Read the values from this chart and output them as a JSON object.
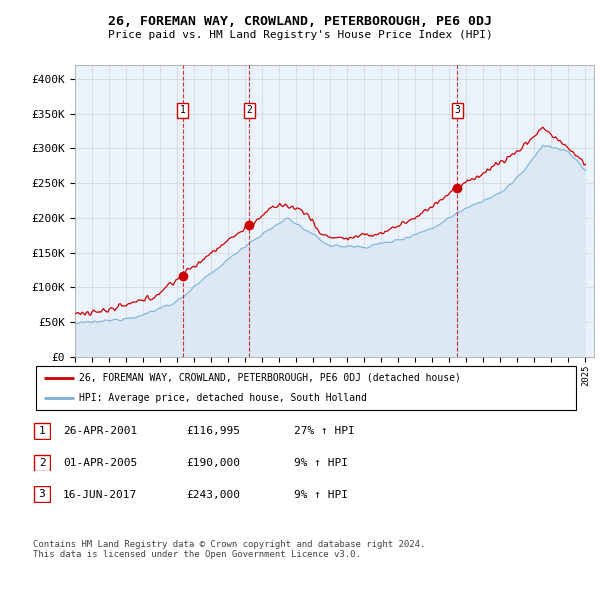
{
  "title": "26, FOREMAN WAY, CROWLAND, PETERBOROUGH, PE6 0DJ",
  "subtitle": "Price paid vs. HM Land Registry's House Price Index (HPI)",
  "ylim": [
    0,
    420000
  ],
  "yticks": [
    0,
    50000,
    100000,
    150000,
    200000,
    250000,
    300000,
    350000,
    400000
  ],
  "ytick_labels": [
    "£0",
    "£50K",
    "£100K",
    "£150K",
    "£200K",
    "£250K",
    "£300K",
    "£350K",
    "£400K"
  ],
  "purchases": [
    {
      "date_num": 2001.32,
      "price": 116995,
      "label": "1"
    },
    {
      "date_num": 2005.25,
      "price": 190000,
      "label": "2"
    },
    {
      "date_num": 2017.46,
      "price": 243000,
      "label": "3"
    }
  ],
  "purchase_line_color": "#cc0000",
  "hpi_line_color": "#7ab0d4",
  "hpi_fill_color": "#dce9f5",
  "grid_color": "#cccccc",
  "legend_entries": [
    "26, FOREMAN WAY, CROWLAND, PETERBOROUGH, PE6 0DJ (detached house)",
    "HPI: Average price, detached house, South Holland"
  ],
  "table_rows": [
    {
      "num": "1",
      "date": "26-APR-2001",
      "price": "£116,995",
      "hpi": "27% ↑ HPI"
    },
    {
      "num": "2",
      "date": "01-APR-2005",
      "price": "£190,000",
      "hpi": "9% ↑ HPI"
    },
    {
      "num": "3",
      "date": "16-JUN-2017",
      "price": "£243,000",
      "hpi": "9% ↑ HPI"
    }
  ],
  "footnote": "Contains HM Land Registry data © Crown copyright and database right 2024.\nThis data is licensed under the Open Government Licence v3.0.",
  "plot_bg": "#eaf2fb"
}
